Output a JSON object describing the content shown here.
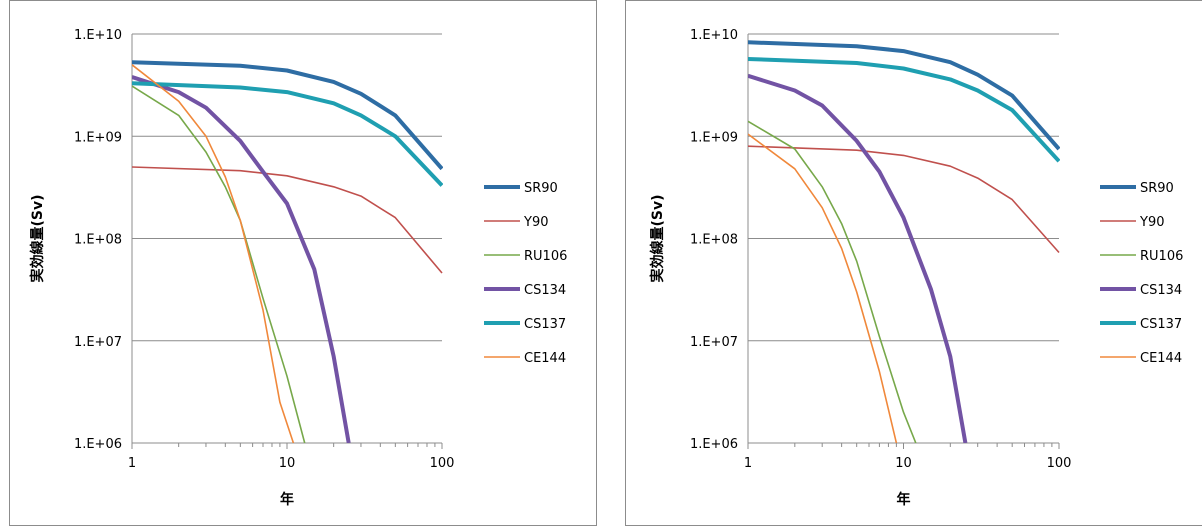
{
  "chart_data": [
    {
      "type": "line",
      "xscale": "log",
      "yscale": "log",
      "xlim": [
        1,
        100
      ],
      "ylim": [
        1000000,
        10000000000
      ],
      "xticks": [
        "1",
        "10",
        "100"
      ],
      "yticks": [
        "1.E+06",
        "1.E+07",
        "1.E+08",
        "1.E+09",
        "1.E+10"
      ],
      "xlabel": "年",
      "ylabel": "実効線量(Sv)",
      "grid": "horizontal",
      "legend_position": "right",
      "series": [
        {
          "name": "SR90",
          "color": "#2e6da4",
          "width": 4,
          "points": [
            [
              1,
              5300000000.0
            ],
            [
              5,
              4900000000.0
            ],
            [
              10,
              4400000000.0
            ],
            [
              20,
              3400000000.0
            ],
            [
              30,
              2600000000.0
            ],
            [
              50,
              1600000000.0
            ],
            [
              100,
              480000000.0
            ]
          ]
        },
        {
          "name": "Y90",
          "color": "#c0504d",
          "width": 1.6,
          "points": [
            [
              1,
              500000000.0
            ],
            [
              5,
              460000000.0
            ],
            [
              10,
              410000000.0
            ],
            [
              20,
              320000000.0
            ],
            [
              30,
              260000000.0
            ],
            [
              50,
              160000000.0
            ],
            [
              100,
              46000000.0
            ]
          ]
        },
        {
          "name": "RU106",
          "color": "#77a84a",
          "width": 1.6,
          "points": [
            [
              1,
              3100000000.0
            ],
            [
              2,
              1600000000.0
            ],
            [
              3,
              700000000.0
            ],
            [
              4,
              320000000.0
            ],
            [
              5,
              150000000.0
            ],
            [
              7,
              26000000.0
            ],
            [
              10,
              4500000.0
            ],
            [
              13,
              1000000.0
            ]
          ]
        },
        {
          "name": "CS134",
          "color": "#7253a4",
          "width": 4,
          "points": [
            [
              1,
              3800000000.0
            ],
            [
              2,
              2700000000.0
            ],
            [
              3,
              1900000000.0
            ],
            [
              5,
              900000000.0
            ],
            [
              7,
              450000000.0
            ],
            [
              10,
              220000000.0
            ],
            [
              15,
              50000000.0
            ],
            [
              20,
              7000000.0
            ],
            [
              25,
              1000000.0
            ]
          ]
        },
        {
          "name": "CS137",
          "color": "#1f9fb1",
          "width": 4,
          "points": [
            [
              1,
              3300000000.0
            ],
            [
              5,
              3000000000.0
            ],
            [
              10,
              2700000000.0
            ],
            [
              20,
              2100000000.0
            ],
            [
              30,
              1600000000.0
            ],
            [
              50,
              1000000000.0
            ],
            [
              100,
              330000000.0
            ]
          ]
        },
        {
          "name": "CE144",
          "color": "#f0883b",
          "width": 1.6,
          "points": [
            [
              1,
              5000000000.0
            ],
            [
              2,
              2200000000.0
            ],
            [
              3,
              1000000000.0
            ],
            [
              4,
              400000000.0
            ],
            [
              5,
              150000000.0
            ],
            [
              7,
              20000000.0
            ],
            [
              9,
              2500000.0
            ],
            [
              11,
              1000000.0
            ]
          ]
        }
      ]
    },
    {
      "type": "line",
      "xscale": "log",
      "yscale": "log",
      "xlim": [
        1,
        100
      ],
      "ylim": [
        1000000,
        10000000000
      ],
      "xticks": [
        "1",
        "10",
        "100"
      ],
      "yticks": [
        "1.E+06",
        "1.E+07",
        "1.E+08",
        "1.E+09",
        "1.E+10"
      ],
      "xlabel": "年",
      "ylabel": "実効線量(Sv)",
      "grid": "horizontal",
      "legend_position": "right",
      "series": [
        {
          "name": "SR90",
          "color": "#2e6da4",
          "width": 4,
          "points": [
            [
              1,
              8300000000.0
            ],
            [
              5,
              7600000000.0
            ],
            [
              10,
              6800000000.0
            ],
            [
              20,
              5300000000.0
            ],
            [
              30,
              4000000000.0
            ],
            [
              50,
              2500000000.0
            ],
            [
              100,
              750000000.0
            ]
          ]
        },
        {
          "name": "Y90",
          "color": "#c0504d",
          "width": 1.6,
          "points": [
            [
              1,
              800000000.0
            ],
            [
              5,
              730000000.0
            ],
            [
              10,
              650000000.0
            ],
            [
              20,
              510000000.0
            ],
            [
              30,
              390000000.0
            ],
            [
              50,
              240000000.0
            ],
            [
              100,
              73000000.0
            ]
          ]
        },
        {
          "name": "RU106",
          "color": "#77a84a",
          "width": 1.6,
          "points": [
            [
              1,
              1400000000.0
            ],
            [
              2,
              750000000.0
            ],
            [
              3,
              320000000.0
            ],
            [
              4,
              140000000.0
            ],
            [
              5,
              60000000.0
            ],
            [
              7,
              11000000.0
            ],
            [
              10,
              2000000.0
            ],
            [
              12,
              1000000.0
            ]
          ]
        },
        {
          "name": "CS134",
          "color": "#7253a4",
          "width": 4,
          "points": [
            [
              1,
              3900000000.0
            ],
            [
              2,
              2800000000.0
            ],
            [
              3,
              2000000000.0
            ],
            [
              5,
              900000000.0
            ],
            [
              7,
              450000000.0
            ],
            [
              10,
              160000000.0
            ],
            [
              15,
              32000000.0
            ],
            [
              20,
              7000000.0
            ],
            [
              25,
              1000000.0
            ]
          ]
        },
        {
          "name": "CS137",
          "color": "#1f9fb1",
          "width": 4,
          "points": [
            [
              1,
              5700000000.0
            ],
            [
              5,
              5200000000.0
            ],
            [
              10,
              4600000000.0
            ],
            [
              20,
              3600000000.0
            ],
            [
              30,
              2800000000.0
            ],
            [
              50,
              1800000000.0
            ],
            [
              100,
              570000000.0
            ]
          ]
        },
        {
          "name": "CE144",
          "color": "#f0883b",
          "width": 1.6,
          "points": [
            [
              1,
              1050000000.0
            ],
            [
              2,
              480000000.0
            ],
            [
              3,
              200000000.0
            ],
            [
              4,
              80000000.0
            ],
            [
              5,
              30000000.0
            ],
            [
              7,
              5000000.0
            ],
            [
              9,
              1000000.0
            ]
          ]
        }
      ]
    }
  ]
}
